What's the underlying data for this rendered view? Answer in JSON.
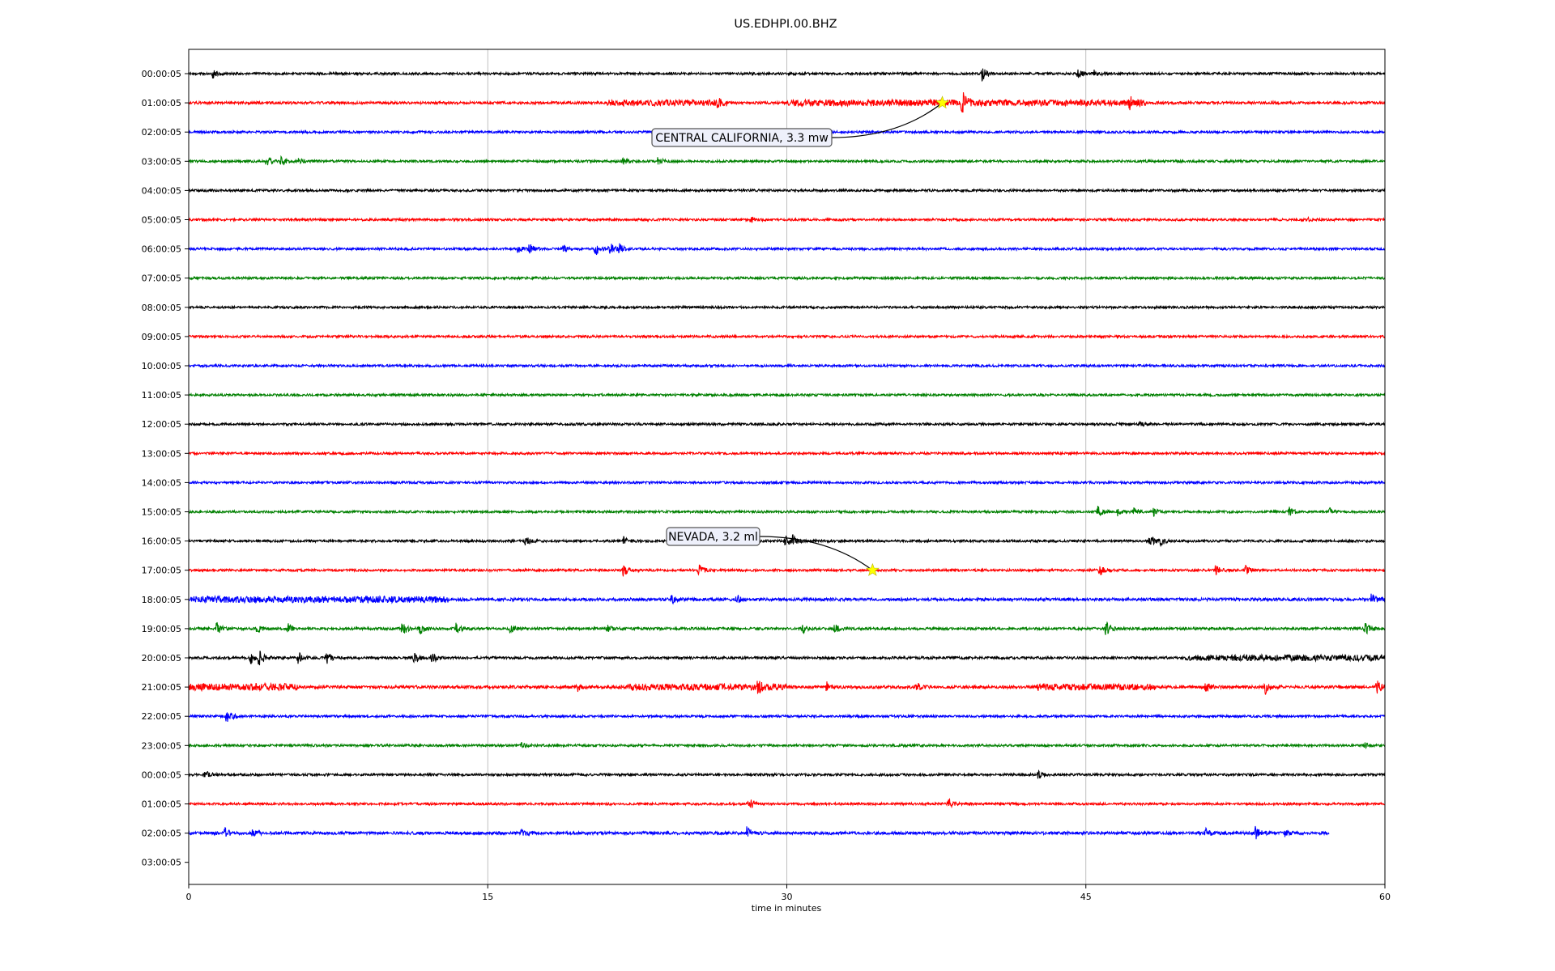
{
  "chart_data": {
    "type": "line",
    "subtype": "seismogram-helicorder",
    "title": "US.EDHPI.00.BHZ",
    "xlabel": "time in minutes",
    "ylabel": "",
    "xlim": [
      0,
      60
    ],
    "xticks": [
      0,
      15,
      30,
      45,
      60
    ],
    "vertical_grid": [
      15,
      30,
      45
    ],
    "row_labels": [
      "00:00:05",
      "01:00:05",
      "02:00:05",
      "03:00:05",
      "04:00:05",
      "05:00:05",
      "06:00:05",
      "07:00:05",
      "08:00:05",
      "09:00:05",
      "10:00:05",
      "11:00:05",
      "12:00:05",
      "13:00:05",
      "14:00:05",
      "15:00:05",
      "16:00:05",
      "17:00:05",
      "18:00:05",
      "19:00:05",
      "20:00:05",
      "21:00:05",
      "22:00:05",
      "23:00:05",
      "00:00:05",
      "01:00:05",
      "02:00:05",
      "03:00:05"
    ],
    "trace_colors": [
      "#000000",
      "#ff0000",
      "#0000ff",
      "#008000"
    ],
    "traces": [
      {
        "row": 0,
        "color": "#000000",
        "end_min": 60,
        "noise": 0.22,
        "events": [
          [
            1.2,
            1.0
          ],
          [
            39.8,
            1.4
          ],
          [
            44.6,
            0.8
          ],
          [
            45.4,
            0.6
          ]
        ]
      },
      {
        "row": 1,
        "color": "#ff0000",
        "end_min": 60,
        "noise": 0.25,
        "events": [
          [
            38.8,
            2.0
          ],
          [
            47.2,
            1.0
          ],
          [
            26.5,
            0.6
          ]
        ],
        "bursts": [
          [
            21,
            27,
            0.35
          ],
          [
            30,
            39,
            0.4
          ],
          [
            39,
            48,
            0.35
          ]
        ]
      },
      {
        "row": 2,
        "color": "#0000ff",
        "end_min": 60,
        "noise": 0.22,
        "events": []
      },
      {
        "row": 3,
        "color": "#008000",
        "end_min": 60,
        "noise": 0.22,
        "events": [
          [
            3.9,
            1.2
          ],
          [
            4.6,
            0.9
          ],
          [
            5.5,
            0.8
          ],
          [
            21.8,
            0.7
          ],
          [
            23.5,
            0.9
          ]
        ]
      },
      {
        "row": 4,
        "color": "#000000",
        "end_min": 60,
        "noise": 0.22,
        "events": []
      },
      {
        "row": 5,
        "color": "#ff0000",
        "end_min": 60,
        "noise": 0.22,
        "events": [
          [
            28.2,
            0.6
          ],
          [
            56.2,
            0.5
          ]
        ]
      },
      {
        "row": 6,
        "color": "#0000ff",
        "end_min": 60,
        "noise": 0.22,
        "events": [
          [
            16.5,
            1.0
          ],
          [
            17.1,
            1.3
          ],
          [
            18.8,
            0.7
          ],
          [
            20.4,
            1.2
          ],
          [
            21.1,
            1.5
          ],
          [
            21.6,
            0.8
          ]
        ]
      },
      {
        "row": 7,
        "color": "#008000",
        "end_min": 60,
        "noise": 0.22,
        "events": []
      },
      {
        "row": 8,
        "color": "#000000",
        "end_min": 60,
        "noise": 0.22,
        "events": []
      },
      {
        "row": 9,
        "color": "#ff0000",
        "end_min": 60,
        "noise": 0.22,
        "events": []
      },
      {
        "row": 10,
        "color": "#0000ff",
        "end_min": 60,
        "noise": 0.22,
        "events": []
      },
      {
        "row": 11,
        "color": "#008000",
        "end_min": 60,
        "noise": 0.22,
        "events": []
      },
      {
        "row": 12,
        "color": "#000000",
        "end_min": 60,
        "noise": 0.22,
        "events": [
          [
            47.7,
            0.5
          ]
        ]
      },
      {
        "row": 13,
        "color": "#ff0000",
        "end_min": 60,
        "noise": 0.22,
        "events": []
      },
      {
        "row": 14,
        "color": "#0000ff",
        "end_min": 60,
        "noise": 0.22,
        "events": []
      },
      {
        "row": 15,
        "color": "#008000",
        "end_min": 60,
        "noise": 0.22,
        "events": [
          [
            45.6,
            1.0
          ],
          [
            46.6,
            0.8
          ],
          [
            47.4,
            0.6
          ],
          [
            48.4,
            0.7
          ],
          [
            55.2,
            0.9
          ],
          [
            57.2,
            0.8
          ]
        ]
      },
      {
        "row": 16,
        "color": "#000000",
        "end_min": 60,
        "noise": 0.22,
        "events": [
          [
            16.9,
            1.0
          ],
          [
            21.8,
            0.8
          ],
          [
            29.9,
            1.4
          ],
          [
            30.3,
            1.0
          ],
          [
            48.2,
            1.2
          ],
          [
            48.7,
            1.0
          ]
        ]
      },
      {
        "row": 17,
        "color": "#ff0000",
        "end_min": 60,
        "noise": 0.22,
        "events": [
          [
            21.8,
            1.3
          ],
          [
            25.6,
            1.2
          ],
          [
            45.7,
            1.2
          ],
          [
            51.5,
            0.9
          ],
          [
            53.0,
            1.0
          ]
        ]
      },
      {
        "row": 18,
        "color": "#0000ff",
        "end_min": 60,
        "noise": 0.28,
        "events": [
          [
            24.2,
            1.0
          ],
          [
            27.5,
            1.0
          ],
          [
            59.3,
            1.2
          ]
        ],
        "bursts": [
          [
            0,
            13,
            0.35
          ]
        ]
      },
      {
        "row": 19,
        "color": "#008000",
        "end_min": 60,
        "noise": 0.24,
        "events": [
          [
            1.4,
            1.3
          ],
          [
            3.4,
            0.7
          ],
          [
            5.0,
            1.0
          ],
          [
            10.7,
            1.4
          ],
          [
            11.6,
            1.0
          ],
          [
            13.4,
            1.2
          ],
          [
            16.1,
            0.9
          ],
          [
            21.0,
            0.6
          ],
          [
            30.8,
            0.8
          ],
          [
            32.4,
            0.8
          ],
          [
            46.0,
            1.3
          ],
          [
            59.0,
            1.2
          ]
        ]
      },
      {
        "row": 20,
        "color": "#000000",
        "end_min": 60,
        "noise": 0.24,
        "events": [
          [
            3.1,
            1.2
          ],
          [
            3.5,
            1.6
          ],
          [
            5.5,
            1.2
          ],
          [
            6.9,
            1.2
          ],
          [
            11.3,
            1.0
          ],
          [
            12.2,
            1.0
          ]
        ],
        "bursts": [
          [
            50,
            60,
            0.35
          ]
        ]
      },
      {
        "row": 21,
        "color": "#ff0000",
        "end_min": 60,
        "noise": 0.28,
        "events": [
          [
            19.5,
            0.8
          ],
          [
            28.5,
            1.2
          ],
          [
            32.0,
            0.9
          ],
          [
            36.5,
            0.9
          ],
          [
            51.0,
            1.0
          ],
          [
            54.0,
            1.3
          ],
          [
            59.6,
            1.4
          ]
        ],
        "bursts": [
          [
            0,
            5.5,
            0.4
          ],
          [
            22,
            30,
            0.35
          ],
          [
            42.5,
            48.5,
            0.35
          ]
        ]
      },
      {
        "row": 22,
        "color": "#0000ff",
        "end_min": 60,
        "noise": 0.22,
        "events": [
          [
            1.9,
            1.6
          ]
        ]
      },
      {
        "row": 23,
        "color": "#008000",
        "end_min": 60,
        "noise": 0.22,
        "events": [
          [
            16.7,
            0.5
          ],
          [
            59.0,
            0.4
          ]
        ]
      },
      {
        "row": 24,
        "color": "#000000",
        "end_min": 60,
        "noise": 0.22,
        "events": [
          [
            0.8,
            1.0
          ],
          [
            42.6,
            0.8
          ]
        ]
      },
      {
        "row": 25,
        "color": "#ff0000",
        "end_min": 60,
        "noise": 0.22,
        "events": [
          [
            28.1,
            1.2
          ],
          [
            38.1,
            1.1
          ]
        ]
      },
      {
        "row": 26,
        "color": "#0000ff",
        "end_min": 57.2,
        "noise": 0.28,
        "events": [
          [
            1.8,
            0.9
          ],
          [
            3.2,
            0.7
          ],
          [
            16.7,
            0.6
          ],
          [
            28.0,
            1.2
          ],
          [
            51.0,
            0.8
          ],
          [
            53.5,
            1.3
          ],
          [
            55.0,
            0.6
          ]
        ]
      }
    ],
    "annotations": [
      {
        "text": "CENTRAL CALIFORNIA, 3.3 mw",
        "row": 1,
        "minute": 37.8,
        "marker": "star",
        "marker_color": "#ffff00"
      },
      {
        "text": "NEVADA, 3.2 ml",
        "row": 17,
        "minute": 34.3,
        "marker": "star",
        "marker_color": "#ffff00"
      }
    ]
  }
}
